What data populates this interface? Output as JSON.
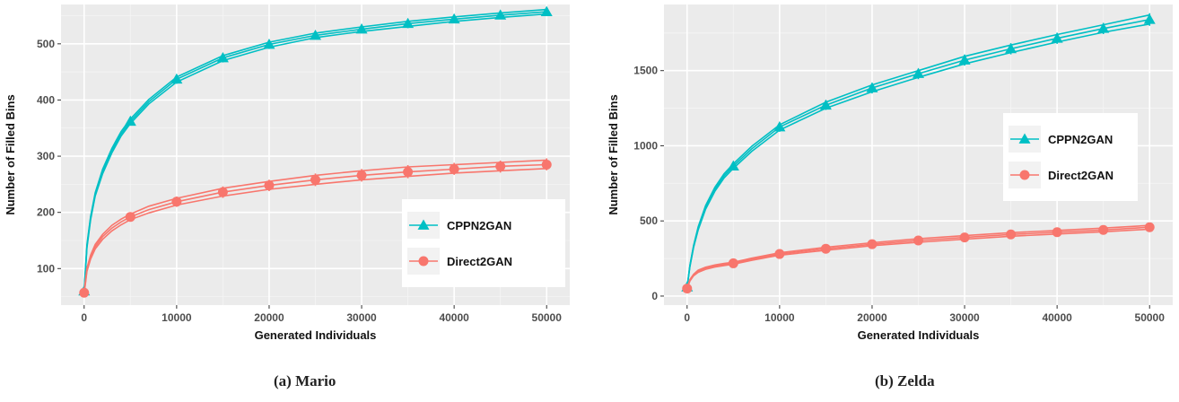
{
  "figure": {
    "captions": [
      "(a) Mario",
      "(b) Zelda"
    ]
  },
  "colors": {
    "cppn": "#00BFC4",
    "direct": "#F8766D",
    "panel_bg": "#EBEBEB",
    "grid_major": "#FFFFFF",
    "axis_text": "#4D4D4D"
  },
  "chart_data": [
    {
      "type": "line",
      "title": "",
      "xlabel": "Generated Individuals",
      "ylabel": "Number of Filled Bins",
      "xlim": [
        -2500,
        52500
      ],
      "ylim": [
        35,
        570
      ],
      "x_ticks": [
        0,
        10000,
        20000,
        30000,
        40000,
        50000
      ],
      "y_ticks": [
        100,
        200,
        300,
        400,
        500
      ],
      "grid": true,
      "legend_position": "bottom-right",
      "marker_x": [
        0,
        5000,
        10000,
        15000,
        20000,
        25000,
        30000,
        35000,
        40000,
        45000,
        50000
      ],
      "x": [
        0,
        300,
        700,
        1200,
        2000,
        3000,
        4000,
        5000,
        7000,
        10000,
        15000,
        20000,
        25000,
        30000,
        35000,
        40000,
        45000,
        50000
      ],
      "series": [
        {
          "name": "CPPN2GAN",
          "marker": "triangle",
          "color": "#00BFC4",
          "values": [
            60,
            140,
            190,
            232,
            273,
            310,
            340,
            362,
            397,
            437,
            475,
            499,
            515,
            526,
            536,
            544,
            551,
            557
          ],
          "lower": [
            58,
            137,
            187,
            229,
            269,
            306,
            336,
            358,
            393,
            432,
            470,
            494,
            511,
            522,
            531,
            540,
            547,
            553
          ],
          "upper": [
            62,
            143,
            193,
            235,
            277,
            314,
            344,
            366,
            401,
            441,
            479,
            503,
            519,
            530,
            540,
            548,
            555,
            561
          ]
        },
        {
          "name": "Direct2GAN",
          "marker": "circle",
          "color": "#F8766D",
          "values": [
            57,
            98,
            120,
            139,
            157,
            172,
            183,
            192,
            205,
            219,
            236,
            248,
            258,
            266,
            272,
            277,
            282,
            285
          ],
          "lower": [
            55,
            95,
            117,
            135,
            152,
            167,
            178,
            187,
            199,
            213,
            229,
            241,
            250,
            258,
            264,
            270,
            274,
            278
          ],
          "upper": [
            59,
            101,
            124,
            143,
            161,
            177,
            188,
            197,
            211,
            225,
            243,
            255,
            266,
            274,
            281,
            285,
            289,
            293
          ]
        }
      ]
    },
    {
      "type": "line",
      "title": "",
      "xlabel": "Generated Individuals",
      "ylabel": "Number of Filled Bins",
      "xlim": [
        -2500,
        52500
      ],
      "ylim": [
        -60,
        1940
      ],
      "x_ticks": [
        0,
        10000,
        20000,
        30000,
        40000,
        50000
      ],
      "y_ticks": [
        0,
        500,
        1000,
        1500
      ],
      "grid": true,
      "legend_position": "right",
      "marker_x": [
        0,
        5000,
        10000,
        15000,
        20000,
        25000,
        30000,
        35000,
        40000,
        45000,
        50000
      ],
      "x": [
        0,
        300,
        700,
        1200,
        2000,
        3000,
        4000,
        5000,
        7000,
        10000,
        15000,
        20000,
        25000,
        30000,
        35000,
        40000,
        45000,
        50000
      ],
      "series": [
        {
          "name": "CPPN2GAN",
          "marker": "triangle",
          "color": "#00BFC4",
          "values": [
            60,
            200,
            330,
            450,
            590,
            710,
            800,
            865,
            980,
            1125,
            1270,
            1385,
            1480,
            1570,
            1645,
            1715,
            1780,
            1840
          ],
          "lower": [
            58,
            195,
            323,
            440,
            578,
            697,
            786,
            850,
            963,
            1105,
            1250,
            1360,
            1455,
            1545,
            1620,
            1690,
            1755,
            1810
          ],
          "upper": [
            62,
            205,
            337,
            460,
            602,
            723,
            814,
            880,
            997,
            1140,
            1290,
            1405,
            1500,
            1595,
            1670,
            1740,
            1805,
            1870
          ]
        },
        {
          "name": "Direct2GAN",
          "marker": "circle",
          "color": "#F8766D",
          "values": [
            50,
            105,
            140,
            165,
            185,
            200,
            210,
            218,
            245,
            280,
            315,
            345,
            370,
            390,
            410,
            425,
            440,
            458
          ],
          "lower": [
            48,
            100,
            135,
            158,
            178,
            193,
            203,
            212,
            238,
            272,
            305,
            335,
            358,
            378,
            398,
            413,
            428,
            445
          ],
          "upper": [
            52,
            110,
            145,
            172,
            192,
            207,
            217,
            225,
            252,
            288,
            325,
            355,
            382,
            402,
            422,
            437,
            452,
            470
          ]
        }
      ]
    }
  ]
}
